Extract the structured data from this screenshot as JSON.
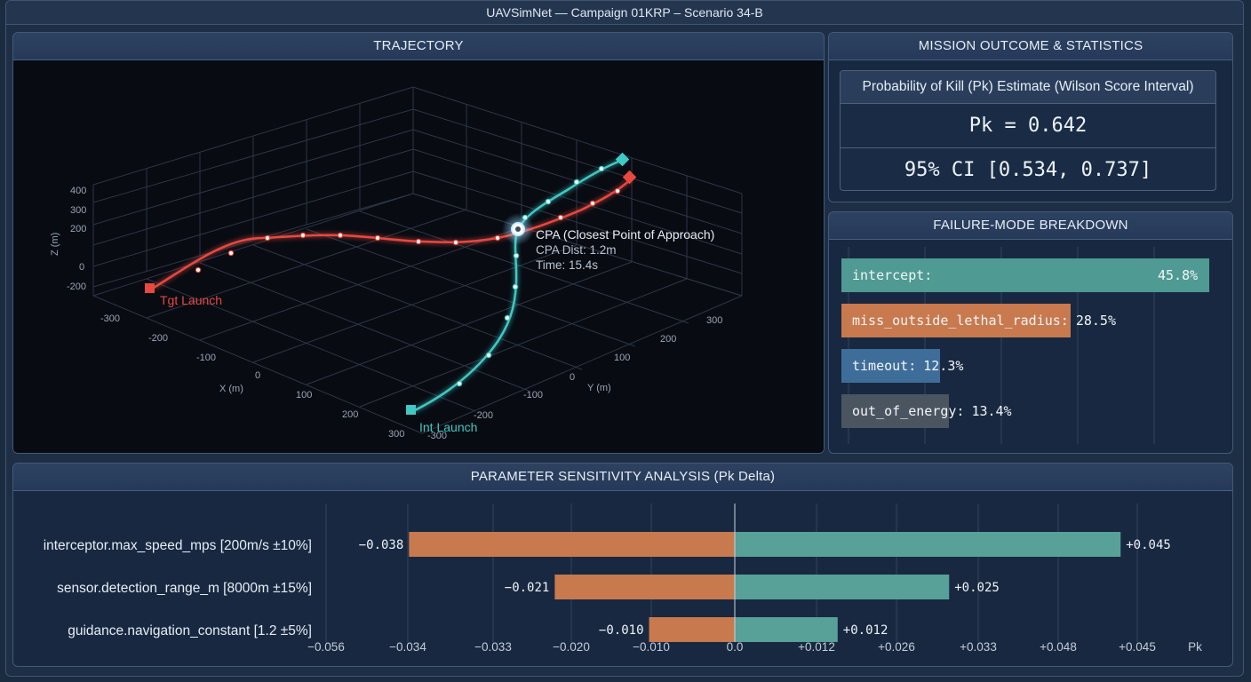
{
  "window": {
    "title": "UAVSimNet — Campaign 01KRP – Scenario 34-B"
  },
  "trajectory": {
    "title": "TRAJECTORY",
    "z_axis_label": "Z (m)",
    "x_axis_label": "X (m)",
    "y_axis_label": "Y (m)",
    "z_ticks": [
      "400",
      "300",
      "200",
      "0",
      "-200"
    ],
    "x_ticks": [
      "-300",
      "-200",
      "-100",
      "0",
      "100",
      "200",
      "300"
    ],
    "y_ticks": [
      "-300",
      "-200",
      "-100",
      "0",
      "100",
      "200",
      "300"
    ],
    "tgt_launch_label": "Tgt Launch",
    "int_launch_label": "Int Launch",
    "cpa_title": "CPA (Closest Point of Approach)",
    "cpa_dist": "CPA Dist: 1.2m",
    "cpa_time": "Time: 15.4s",
    "target_color": "#e8483f",
    "interceptor_color": "#3fc9c4"
  },
  "stats": {
    "title": "MISSION OUTCOME & STATISTICS",
    "pk_header": "Probability of Kill (Pk) Estimate (Wilson Score Interval)",
    "pk_value": "Pk = 0.642",
    "ci": "95% CI [0.534, 0.737]"
  },
  "failure": {
    "title": "FAILURE-MODE BREAKDOWN",
    "items": [
      {
        "label": "intercept:",
        "pct": "45.8%",
        "value": 45.8,
        "color": "#4f9a92"
      },
      {
        "label": "miss_outside_lethal_radius:",
        "pct": "28.5%",
        "value": 28.5,
        "color": "#c8794e"
      },
      {
        "label": "timeout:",
        "pct": "12.3%",
        "value": 12.3,
        "color": "#3f6d99"
      },
      {
        "label": "out_of_energy:",
        "pct": "13.4%",
        "value": 13.4,
        "color": "#4a5560"
      }
    ]
  },
  "sensitivity": {
    "title": "PARAMETER SENSITIVITY ANALYSIS (Pk Delta)",
    "negative_color": "#c8794e",
    "positive_color": "#57a199",
    "params": [
      {
        "name": "interceptor.max_speed_mps [200m/s ±10%]",
        "neg_label": "−0.038",
        "pos_label": "+0.045"
      },
      {
        "name": "sensor.detection_range_m [8000m ±15%]",
        "neg_label": "−0.021",
        "pos_label": "+0.025"
      },
      {
        "name": "guidance.navigation_constant [1.2 ±5%]",
        "neg_label": "−0.010",
        "pos_label": "+0.012"
      }
    ],
    "chart_data": {
      "type": "bar",
      "categories": [
        "interceptor.max_speed_mps [200m/s ±10%]",
        "sensor.detection_range_m [8000m ±15%]",
        "guidance.navigation_constant [1.2 ±5%]"
      ],
      "series": [
        {
          "values": [
            -0.038,
            -0.021,
            -0.01
          ]
        },
        {
          "values": [
            0.045,
            0.025,
            0.012
          ]
        }
      ],
      "xlabel": "Pk",
      "tick_labels": [
        "−0.056",
        "−0.034",
        "−0.033",
        "−0.020",
        "−0.010",
        "0.0",
        "+0.012",
        "+0.026",
        "+0.033",
        "+0.048",
        "+0.045"
      ]
    }
  }
}
